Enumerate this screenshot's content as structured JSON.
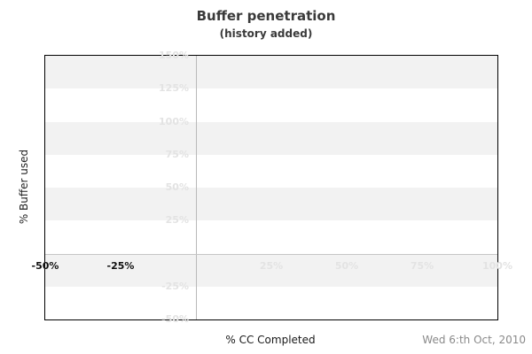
{
  "header": {
    "title": "Buffer penetration",
    "subtitle": "(history added)"
  },
  "axes": {
    "ylabel": "% Buffer used",
    "xlabel": "% CC Completed"
  },
  "footer": {
    "date": "Wed 6:th Oct, 2010"
  },
  "colors": {
    "background": "#ffffff",
    "plot_border": "#000000",
    "band_gray": "#f2f2f2",
    "grid_vertical": "#b9b9b9",
    "grid_horizontal": "#c6c6c6",
    "tick_muted": "#e3e3e3",
    "tick_emphasis": "#111111",
    "title_text": "#3a3a3a",
    "date_text": "#8a8a8a"
  },
  "chart_data": {
    "type": "line",
    "title": "Buffer penetration",
    "subtitle": "(history added)",
    "xlabel": "% CC Completed",
    "ylabel": "% Buffer used",
    "xlim": [
      -50,
      100
    ],
    "ylim": [
      -50,
      150
    ],
    "x_ticks": [
      {
        "value": -50,
        "label": "-50%",
        "emphasis": true
      },
      {
        "value": -25,
        "label": "-25%",
        "emphasis": true
      },
      {
        "value": 25,
        "label": "25%",
        "emphasis": false
      },
      {
        "value": 50,
        "label": "50%",
        "emphasis": false
      },
      {
        "value": 75,
        "label": "75%",
        "emphasis": false
      },
      {
        "value": 100,
        "label": "100%",
        "emphasis": false
      }
    ],
    "y_ticks": [
      {
        "value": 150,
        "label": "150%"
      },
      {
        "value": 125,
        "label": "125%"
      },
      {
        "value": 100,
        "label": "100%"
      },
      {
        "value": 75,
        "label": "75%"
      },
      {
        "value": 50,
        "label": "50%"
      },
      {
        "value": 25,
        "label": "25%"
      },
      {
        "value": -25,
        "label": "-25%"
      },
      {
        "value": -50,
        "label": "-50%"
      }
    ],
    "bands_gray": [
      {
        "from": 150,
        "to": 125
      },
      {
        "from": 100,
        "to": 75
      },
      {
        "from": 50,
        "to": 25
      },
      {
        "from": 0,
        "to": -25
      }
    ],
    "gridlines": {
      "vertical": [
        0
      ],
      "horizontal": [
        0
      ]
    },
    "series": [],
    "legend": null,
    "grid": "zero-lines-only"
  }
}
